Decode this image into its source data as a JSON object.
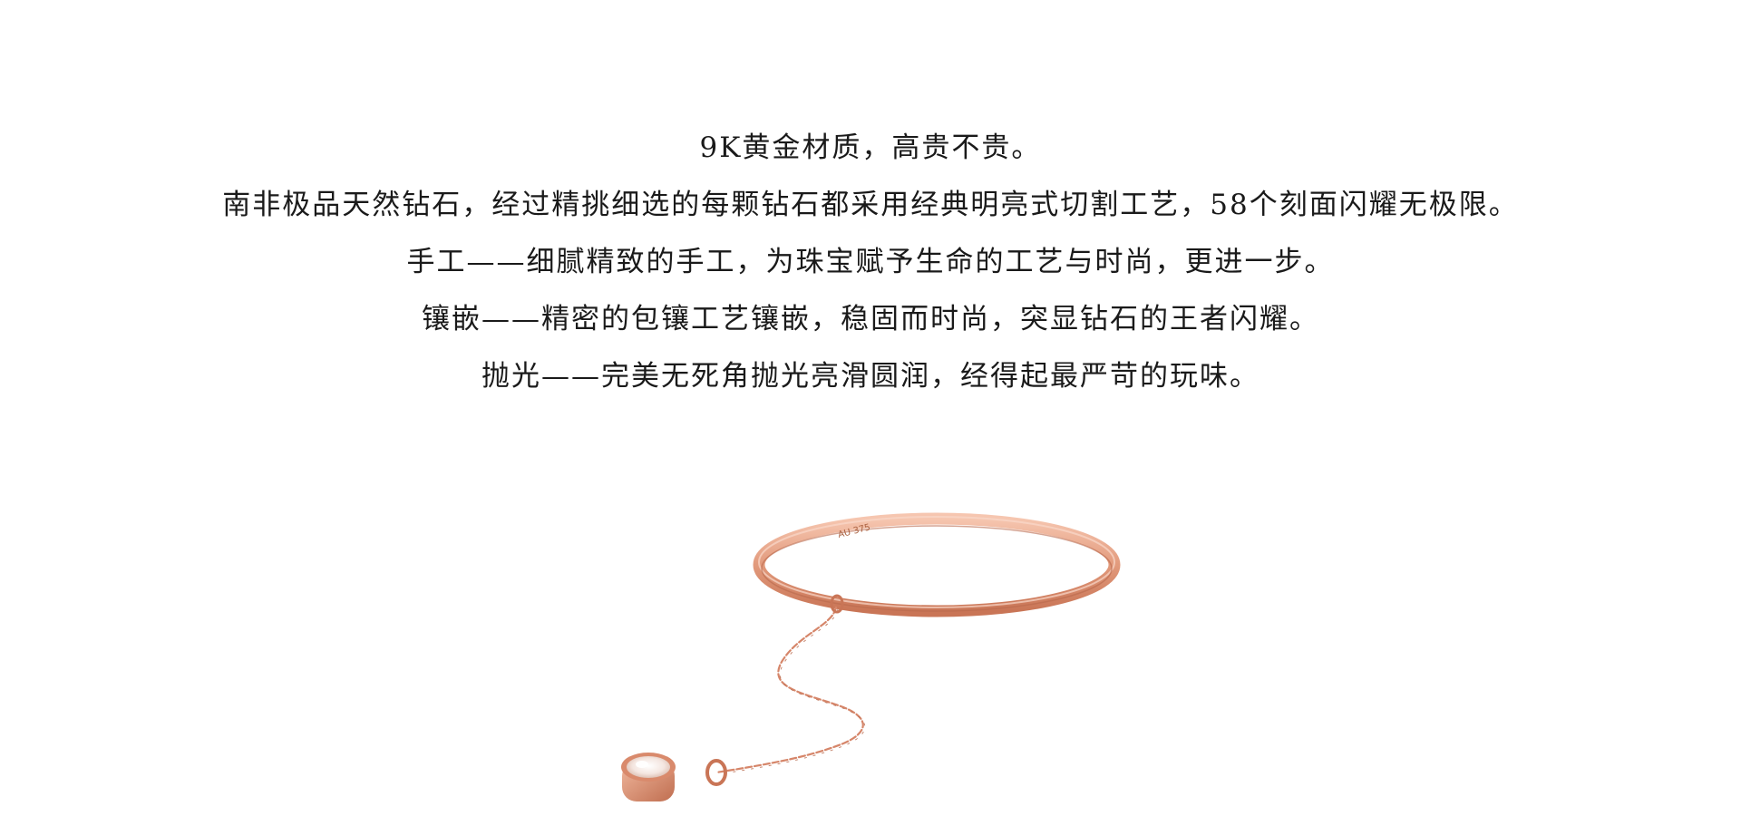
{
  "description": {
    "lines": [
      "9K黄金材质，高贵不贵。",
      "南非极品天然钻石，经过精挑细选的每颗钻石都采用经典明亮式切割工艺，58个刻面闪耀无极限。",
      "手工——细腻精致的手工，为珠宝赋予生命的工艺与时尚，更进一步。",
      "镶嵌——精密的包镶工艺镶嵌，稳固而时尚，突显钻石的王者闪耀。",
      "抛光——完美无死角抛光亮滑圆润，经得起最严苛的玩味。"
    ]
  },
  "product": {
    "engraving": "AU 375",
    "metal_color": "#e9a58a",
    "metal_shadow": "#c9775a",
    "metal_highlight": "#f8d2c0"
  }
}
